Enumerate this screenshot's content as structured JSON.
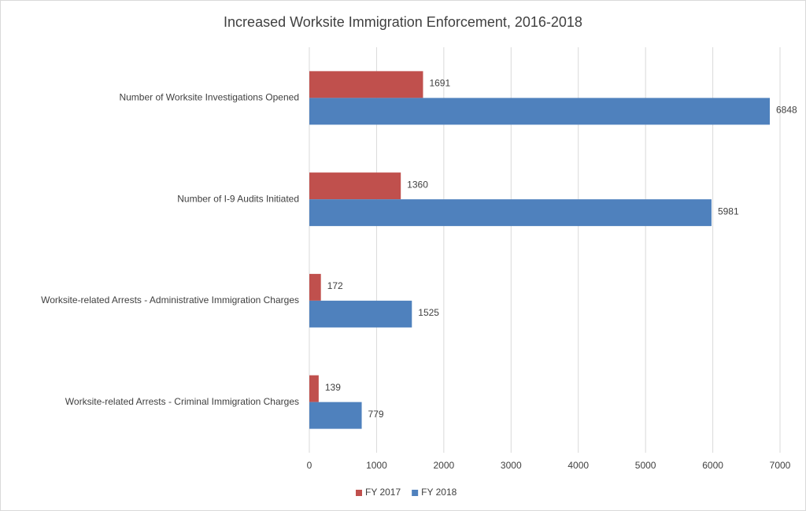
{
  "chart_data": {
    "type": "bar",
    "orientation": "horizontal",
    "title": "Increased Worksite Immigration Enforcement, 2016-2018",
    "categories": [
      "Number of Worksite Investigations Opened",
      "Number of I-9 Audits Initiated",
      "Worksite-related Arrests - Administrative Immigration Charges",
      "Worksite-related Arrests - Criminal Immigration Charges"
    ],
    "series": [
      {
        "name": "FY 2017",
        "color": "#c0504d",
        "values": [
          1691,
          1360,
          172,
          139
        ]
      },
      {
        "name": "FY 2018",
        "color": "#4f81bd",
        "values": [
          6848,
          5981,
          1525,
          779
        ]
      }
    ],
    "xlim": [
      0,
      7000
    ],
    "xticks": [
      0,
      1000,
      2000,
      3000,
      4000,
      5000,
      6000,
      7000
    ],
    "grid": true,
    "legend": "bottom"
  }
}
